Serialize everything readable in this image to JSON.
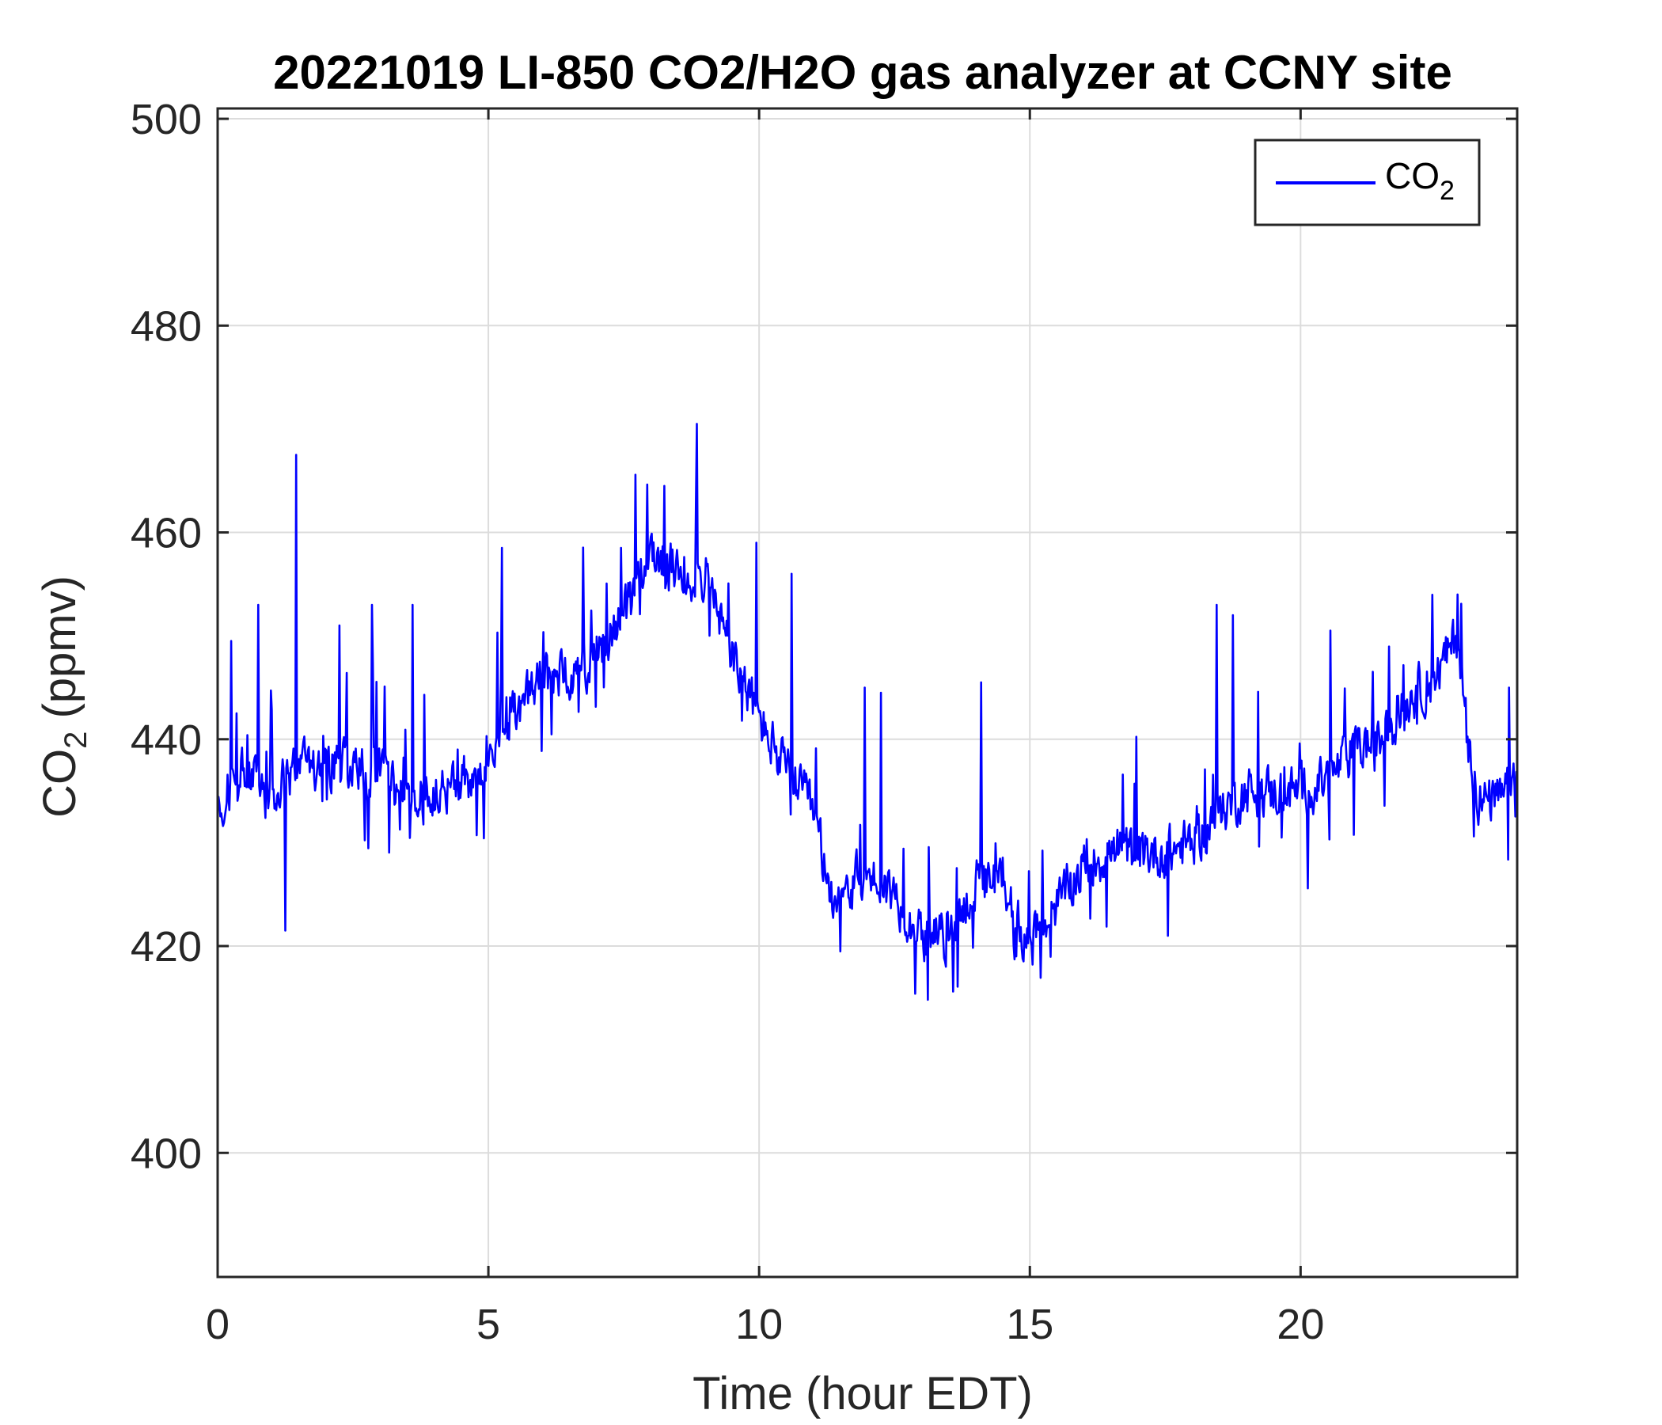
{
  "chart_data": {
    "type": "line",
    "title": "20221019 LI-850 CO2/H2O gas analyzer at CCNY site",
    "xlabel": "Time (hour EDT)",
    "ylabel": {
      "main": "CO",
      "sub": "2",
      "unit": " (ppmv)"
    },
    "xlim": [
      0,
      24
    ],
    "ylim": [
      388,
      501
    ],
    "xticks": [
      0,
      5,
      10,
      15,
      20
    ],
    "yticks": [
      400,
      420,
      440,
      460,
      480,
      500
    ],
    "grid": true,
    "legend": {
      "position": "top-right"
    },
    "colors": {
      "series": "#0000ff",
      "grid": "#dcdcdc",
      "axes": "#262626"
    },
    "series": [
      {
        "name": {
          "main": "CO",
          "sub": "2"
        },
        "noise": 3.5,
        "spike_amplitude": 9,
        "points": [
          [
            0,
            434
          ],
          [
            0.5,
            437
          ],
          [
            1,
            434
          ],
          [
            1.4,
            437
          ],
          [
            2,
            438
          ],
          [
            2.5,
            437
          ],
          [
            3,
            437
          ],
          [
            3.5,
            434
          ],
          [
            4,
            434.5
          ],
          [
            4.5,
            436
          ],
          [
            5,
            437.5
          ],
          [
            5.5,
            443
          ],
          [
            6,
            446
          ],
          [
            6.5,
            446
          ],
          [
            7,
            448
          ],
          [
            7.5,
            452
          ],
          [
            8,
            458
          ],
          [
            8.5,
            456
          ],
          [
            9,
            456
          ],
          [
            9.5,
            448
          ],
          [
            10,
            442
          ],
          [
            10.5,
            437
          ],
          [
            11,
            433
          ],
          [
            11.3,
            425
          ],
          [
            12,
            427
          ],
          [
            12.5,
            425
          ],
          [
            13,
            421
          ],
          [
            13.5,
            421
          ],
          [
            14,
            426
          ],
          [
            14.5,
            426
          ],
          [
            15,
            420
          ],
          [
            15.5,
            424
          ],
          [
            16,
            428
          ],
          [
            16.5,
            429
          ],
          [
            17,
            429
          ],
          [
            17.5,
            429
          ],
          [
            18,
            430
          ],
          [
            18.5,
            433
          ],
          [
            19,
            435
          ],
          [
            19.5,
            435
          ],
          [
            20,
            435
          ],
          [
            20.5,
            436
          ],
          [
            21,
            439
          ],
          [
            21.5,
            440
          ],
          [
            22,
            444
          ],
          [
            22.5,
            446
          ],
          [
            22.9,
            450
          ],
          [
            23.1,
            440
          ],
          [
            23.3,
            434
          ],
          [
            23.7,
            434
          ],
          [
            24,
            436
          ]
        ],
        "spikes": [
          [
            1.45,
            467.5
          ],
          [
            1.25,
            421.5
          ],
          [
            0.25,
            449.5
          ],
          [
            0.75,
            453
          ],
          [
            2.25,
            451
          ],
          [
            2.85,
            453
          ],
          [
            3.6,
            453
          ],
          [
            5.25,
            458.5
          ],
          [
            7.45,
            458.5
          ],
          [
            8.25,
            464.5
          ],
          [
            8.85,
            470.5
          ],
          [
            9.95,
            459
          ],
          [
            10.6,
            456
          ],
          [
            11.95,
            445
          ],
          [
            12.25,
            444.5
          ],
          [
            13.45,
            418
          ],
          [
            14.1,
            445.5
          ],
          [
            14.75,
            419
          ],
          [
            17.55,
            421
          ],
          [
            18.45,
            453
          ],
          [
            18.75,
            452
          ],
          [
            20.55,
            450.5
          ],
          [
            22.9,
            454
          ],
          [
            23.85,
            445
          ]
        ]
      }
    ]
  }
}
